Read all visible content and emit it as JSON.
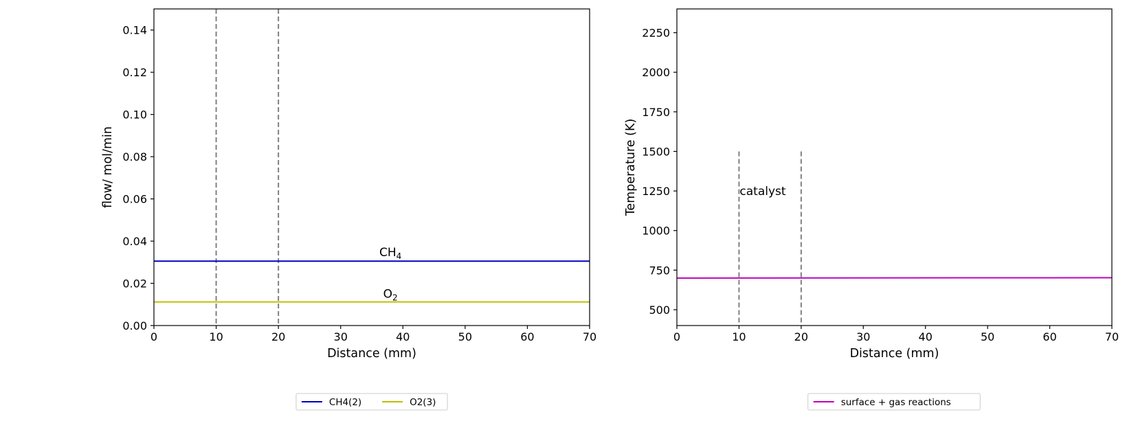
{
  "chart_data": [
    {
      "type": "line",
      "xlabel": "Distance (mm)",
      "ylabel": "flow/ mol/min",
      "xlim": [
        0,
        70
      ],
      "ylim": [
        0,
        0.15
      ],
      "xticks": [
        "0",
        "10",
        "20",
        "30",
        "40",
        "50",
        "60",
        "70"
      ],
      "yticks": [
        "0.00",
        "0.02",
        "0.04",
        "0.06",
        "0.08",
        "0.10",
        "0.12",
        "0.14"
      ],
      "grid": false,
      "catalyst_bounds": [
        10,
        20
      ],
      "series": [
        {
          "name": "CH4(2)",
          "color": "#0000bf",
          "x": [
            0,
            70
          ],
          "y": [
            0.0305,
            0.0305
          ]
        },
        {
          "name": "O2(3)",
          "color": "#bfbf00",
          "x": [
            0,
            70
          ],
          "y": [
            0.0112,
            0.0112
          ]
        }
      ],
      "annotations": [
        {
          "base": "CH",
          "sub": "4",
          "x": 38,
          "y": 0.0315
        },
        {
          "base": "O",
          "sub": "2",
          "x": 38,
          "y": 0.0118
        }
      ],
      "legend": {
        "placement": "bottom-center",
        "columns": 2
      }
    },
    {
      "type": "line",
      "xlabel": "Distance (mm)",
      "ylabel": "Temperature (K)",
      "xlim": [
        0,
        70
      ],
      "ylim": [
        400,
        2400
      ],
      "xticks": [
        "0",
        "10",
        "20",
        "30",
        "40",
        "50",
        "60",
        "70"
      ],
      "yticks": [
        "500",
        "750",
        "1000",
        "1250",
        "1500",
        "1750",
        "2000",
        "2250"
      ],
      "grid": false,
      "catalyst_bounds": [
        10,
        20
      ],
      "catalyst_line_top": 1500,
      "series": [
        {
          "name": "surface + gas reactions",
          "color": "#bf00bf",
          "x": [
            0,
            70
          ],
          "y": [
            700,
            702
          ]
        }
      ],
      "annotations": [
        {
          "text": "catalyst",
          "x": 10,
          "y": 1250
        }
      ],
      "legend": {
        "placement": "bottom-center",
        "columns": 1
      }
    }
  ]
}
